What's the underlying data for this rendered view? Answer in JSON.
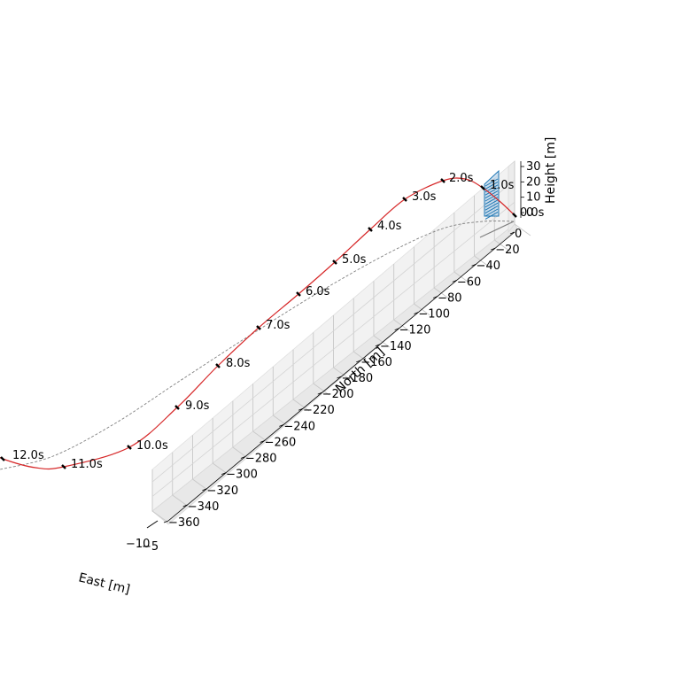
{
  "chart_data": {
    "type": "line",
    "projection": "3d",
    "title": "",
    "xlabel": "East [m]",
    "ylabel": "North [m]",
    "zlabel": "Height [m]",
    "grid": true,
    "east_ticks": [
      "−10",
      "−5"
    ],
    "north_ticks": [
      "0",
      "−20",
      "−40",
      "−60",
      "−80",
      "−100",
      "−120",
      "−140",
      "−160",
      "−180",
      "−200",
      "−220",
      "−240",
      "−260",
      "−280",
      "−300",
      "−320",
      "−340",
      "−360"
    ],
    "north_values": [
      0,
      -20,
      -40,
      -60,
      -80,
      -100,
      -120,
      -140,
      -160,
      -180,
      -200,
      -220,
      -240,
      -260,
      -280,
      -300,
      -320,
      -340,
      -360
    ],
    "height_ticks": [
      "0",
      "10",
      "20",
      "30"
    ],
    "height_values": [
      0,
      10,
      20,
      30
    ],
    "time_labels": [
      "0.0s",
      "1.0s",
      "2.0s",
      "3.0s",
      "4.0s",
      "5.0s",
      "6.0s",
      "7.0s",
      "8.0s",
      "9.0s",
      "10.0s",
      "11.0s",
      "12.0s"
    ],
    "time_values": [
      0,
      1,
      2,
      3,
      4,
      5,
      6,
      7,
      8,
      9,
      10,
      11,
      12
    ],
    "series": [
      {
        "role": "trajectory",
        "color": "#d62728"
      },
      {
        "role": "ground-projection",
        "color": "#808080",
        "style": "dashed"
      },
      {
        "role": "start-structure",
        "color": "#1f77b4"
      }
    ]
  }
}
